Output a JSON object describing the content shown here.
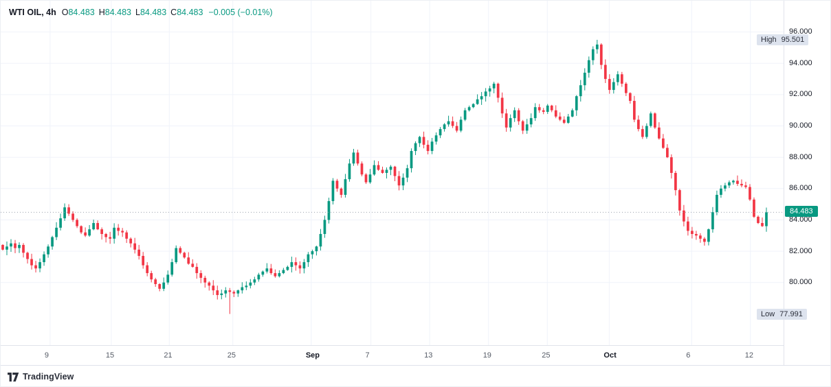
{
  "header": {
    "symbol": "WTI OIL, 4h",
    "ohlc": [
      {
        "label": "O",
        "value": "84.483"
      },
      {
        "label": "H",
        "value": "84.483"
      },
      {
        "label": "L",
        "value": "84.483"
      },
      {
        "label": "C",
        "value": "84.483"
      }
    ],
    "change": "−0.005 (−0.01%)"
  },
  "colors": {
    "up": "#089981",
    "down": "#f23645",
    "text": "#131722",
    "muted": "#555b66",
    "grid": "#f0f3fa",
    "border": "#e0e3eb",
    "badge_bg": "#dde3ee",
    "badge_text": "#2a2e39",
    "last_line": "#9aa0ac"
  },
  "chart_data": {
    "type": "candlestick",
    "title": "WTI OIL, 4h",
    "symbol": "WTI OIL",
    "timeframe": "4h",
    "legend_position": "top-left",
    "grid": true,
    "y_axis": {
      "min": 76.0,
      "max": 98.0,
      "ticks": [
        "96.000",
        "94.000",
        "92.000",
        "90.000",
        "88.000",
        "86.000",
        "84.000",
        "82.000",
        "80.000"
      ]
    },
    "x_ticks": [
      {
        "label": "9",
        "pos": 0.063,
        "month": false
      },
      {
        "label": "15",
        "pos": 0.141,
        "month": false
      },
      {
        "label": "21",
        "pos": 0.215,
        "month": false
      },
      {
        "label": "25",
        "pos": 0.296,
        "month": false
      },
      {
        "label": "Sep",
        "pos": 0.396,
        "month": true
      },
      {
        "label": "7",
        "pos": 0.472,
        "month": false
      },
      {
        "label": "13",
        "pos": 0.547,
        "month": false
      },
      {
        "label": "19",
        "pos": 0.622,
        "month": false
      },
      {
        "label": "25",
        "pos": 0.697,
        "month": false
      },
      {
        "label": "Oct",
        "pos": 0.776,
        "month": true
      },
      {
        "label": "6",
        "pos": 0.881,
        "month": false
      },
      {
        "label": "12",
        "pos": 0.956,
        "month": false
      }
    ],
    "open_first": 82.4,
    "closes": [
      82.1,
      82.3,
      82.5,
      82.2,
      82.4,
      81.9,
      81.5,
      81.1,
      80.9,
      81.3,
      81.8,
      82.3,
      82.9,
      83.5,
      84.1,
      84.8,
      84.4,
      84.0,
      83.6,
      83.2,
      83.0,
      83.4,
      83.8,
      83.4,
      83.1,
      82.9,
      82.8,
      83.5,
      83.3,
      83.2,
      82.8,
      82.5,
      82.1,
      81.7,
      81.1,
      80.6,
      80.2,
      79.9,
      79.6,
      80.0,
      80.5,
      81.3,
      82.2,
      81.9,
      81.6,
      81.2,
      81.0,
      80.6,
      80.3,
      80.0,
      79.8,
      79.5,
      79.2,
      79.3,
      79.5,
      79.4,
      79.3,
      79.5,
      79.7,
      79.8,
      80.0,
      80.2,
      80.5,
      80.7,
      80.9,
      80.6,
      80.4,
      80.6,
      80.8,
      81.0,
      81.3,
      81.1,
      80.9,
      81.3,
      81.8,
      82.0,
      82.3,
      83.1,
      84.0,
      85.2,
      86.5,
      86.0,
      85.6,
      86.6,
      87.6,
      88.3,
      87.6,
      86.9,
      86.4,
      86.9,
      87.5,
      87.2,
      87.0,
      87.2,
      87.4,
      86.8,
      86.2,
      86.7,
      87.3,
      88.4,
      88.9,
      89.3,
      88.8,
      88.4,
      89.0,
      89.4,
      89.8,
      90.1,
      90.3,
      90.0,
      89.7,
      90.4,
      91.0,
      91.2,
      91.4,
      91.7,
      91.9,
      92.2,
      92.4,
      92.7,
      91.8,
      90.8,
      89.9,
      90.5,
      91.0,
      90.3,
      89.7,
      90.1,
      90.5,
      91.2,
      91.0,
      90.9,
      91.3,
      91.0,
      90.6,
      90.4,
      90.2,
      90.6,
      91.0,
      91.9,
      92.6,
      93.4,
      94.2,
      94.9,
      95.2,
      93.9,
      93.0,
      92.3,
      92.8,
      93.3,
      92.7,
      92.1,
      91.6,
      90.4,
      89.8,
      89.3,
      90.0,
      90.8,
      89.9,
      89.2,
      88.6,
      88.0,
      87.0,
      85.9,
      84.6,
      83.9,
      83.3,
      83.1,
      83.0,
      82.8,
      82.6,
      83.4,
      84.5,
      85.6,
      86.0,
      86.2,
      86.4,
      86.5,
      86.3,
      86.2,
      86.1,
      85.3,
      84.2,
      83.8,
      83.6,
      84.483
    ],
    "high_point": {
      "index": 144,
      "price": 95.501
    },
    "low_point": {
      "index": 55,
      "price": 77.991
    },
    "last_price": "84.483",
    "high_label": {
      "label": "High",
      "value": "95.501"
    },
    "low_label": {
      "label": "Low",
      "value": "77.991"
    }
  },
  "footer": {
    "logo_text": "TradingView"
  }
}
